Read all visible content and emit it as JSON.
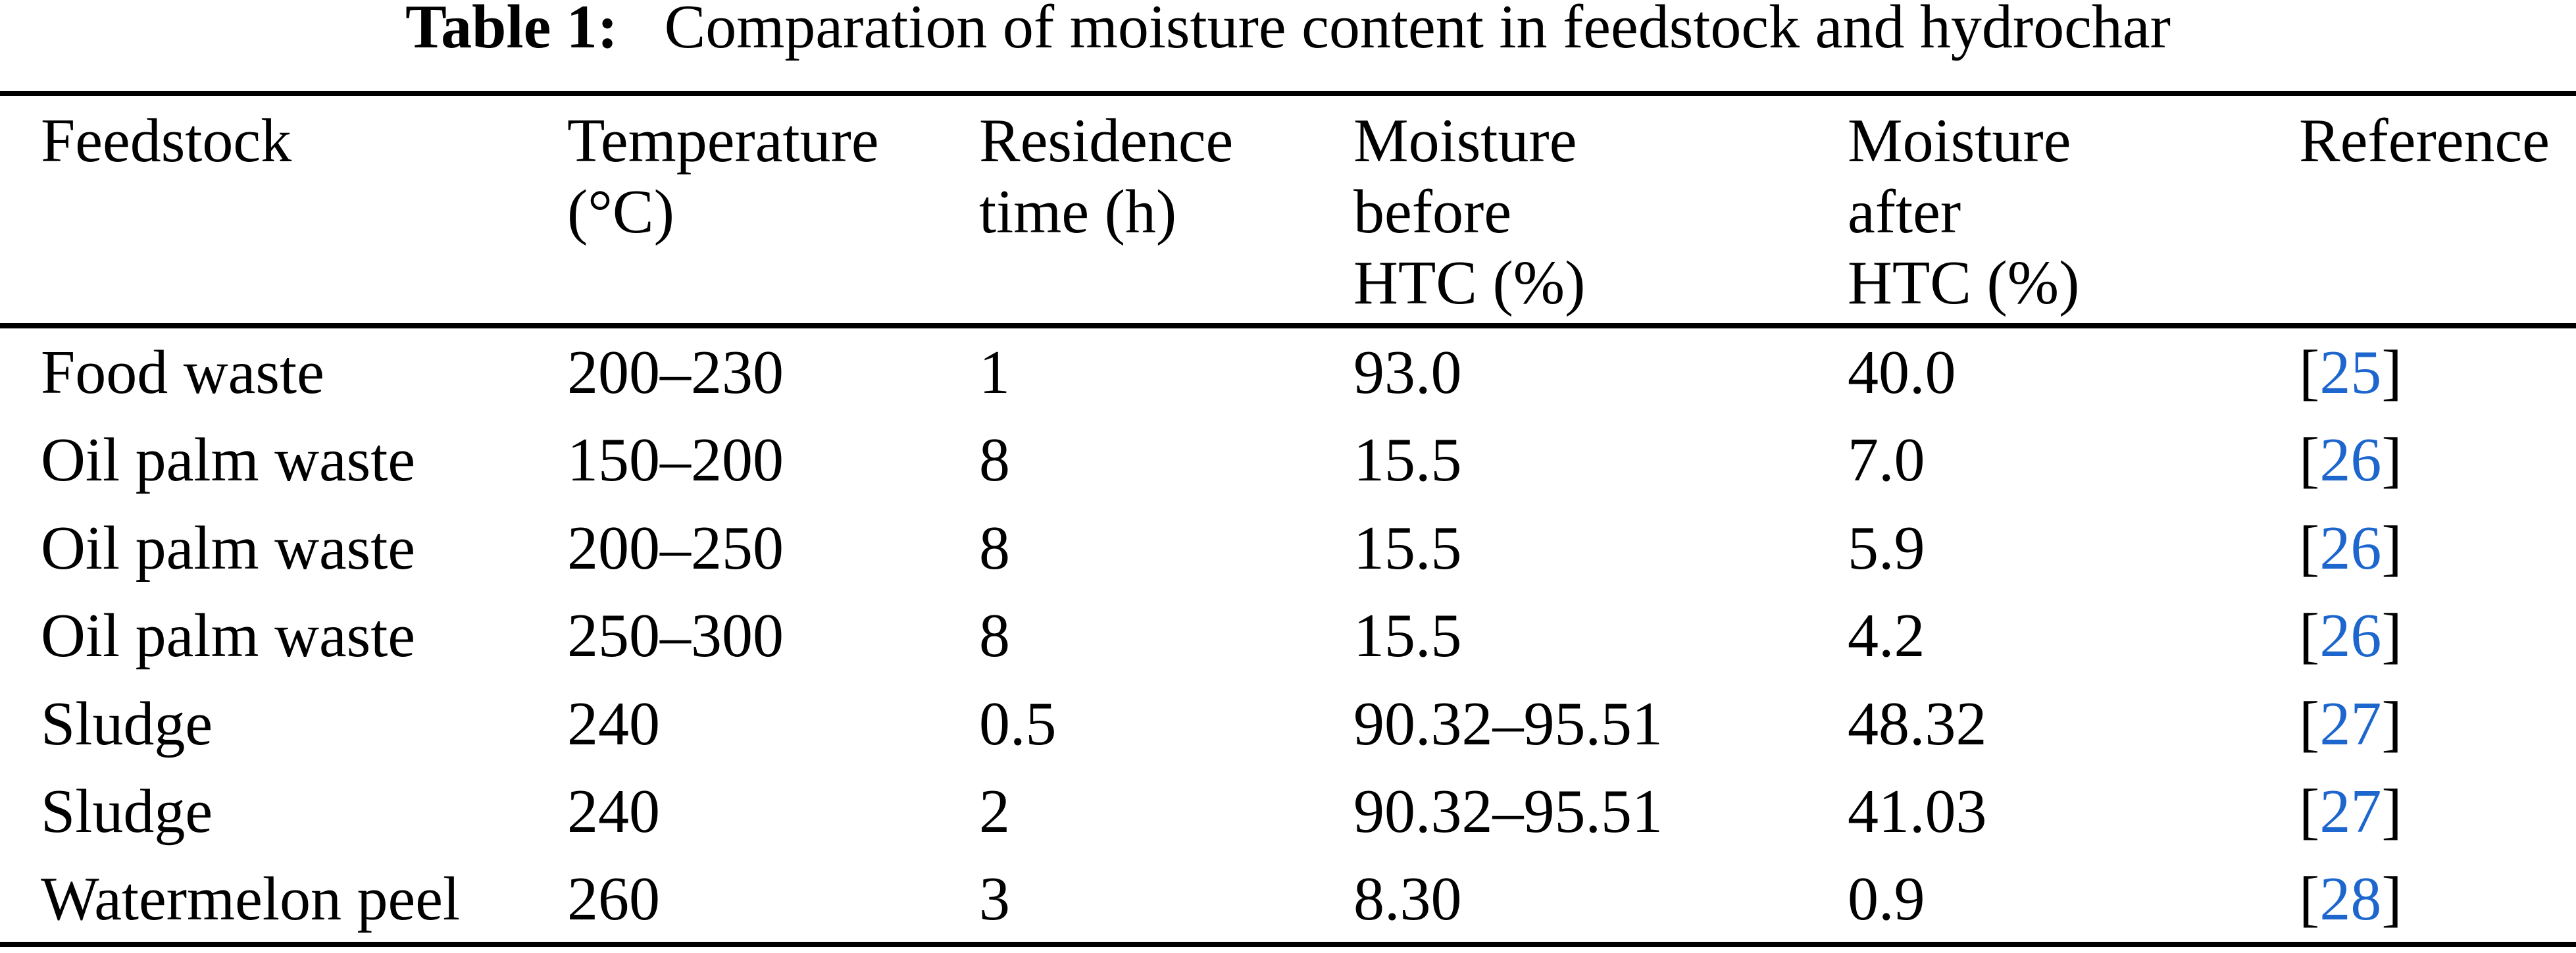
{
  "title": {
    "label": "Table 1:",
    "text": "Comparation of moisture content in feedstock and hydrochar"
  },
  "colors": {
    "text": "#000000",
    "rule": "#000000",
    "citation": "#1C66CE",
    "background": "#ffffff"
  },
  "table": {
    "header": {
      "feedstock": [
        "Feedstock"
      ],
      "temperature": [
        "Temperature",
        "(°C)"
      ],
      "residence": [
        "Residence",
        "time (h)"
      ],
      "moisture_before": [
        "Moisture",
        "before",
        "HTC (%)"
      ],
      "moisture_after": [
        "Moisture",
        "after",
        "HTC (%)"
      ],
      "reference": [
        "Reference"
      ]
    },
    "citation_brackets": {
      "open": "[",
      "close": "]"
    },
    "rows": [
      {
        "feedstock": "Food waste",
        "temperature": "200–230",
        "residence_time": "1",
        "moisture_before": "93.0",
        "moisture_after": "40.0",
        "reference": "25"
      },
      {
        "feedstock": "Oil palm waste",
        "temperature": "150–200",
        "residence_time": "8",
        "moisture_before": "15.5",
        "moisture_after": "7.0",
        "reference": "26"
      },
      {
        "feedstock": "Oil palm waste",
        "temperature": "200–250",
        "residence_time": "8",
        "moisture_before": "15.5",
        "moisture_after": "5.9",
        "reference": "26"
      },
      {
        "feedstock": "Oil palm waste",
        "temperature": "250–300",
        "residence_time": "8",
        "moisture_before": "15.5",
        "moisture_after": "4.2",
        "reference": "26"
      },
      {
        "feedstock": "Sludge",
        "temperature": "240",
        "residence_time": "0.5",
        "moisture_before": "90.32–95.51",
        "moisture_after": "48.32",
        "reference": "27"
      },
      {
        "feedstock": "Sludge",
        "temperature": "240",
        "residence_time": "2",
        "moisture_before": "90.32–95.51",
        "moisture_after": "41.03",
        "reference": "27"
      },
      {
        "feedstock": "Watermelon peel",
        "temperature": "260",
        "residence_time": "3",
        "moisture_before": "8.30",
        "moisture_after": "0.9",
        "reference": "28"
      }
    ]
  }
}
